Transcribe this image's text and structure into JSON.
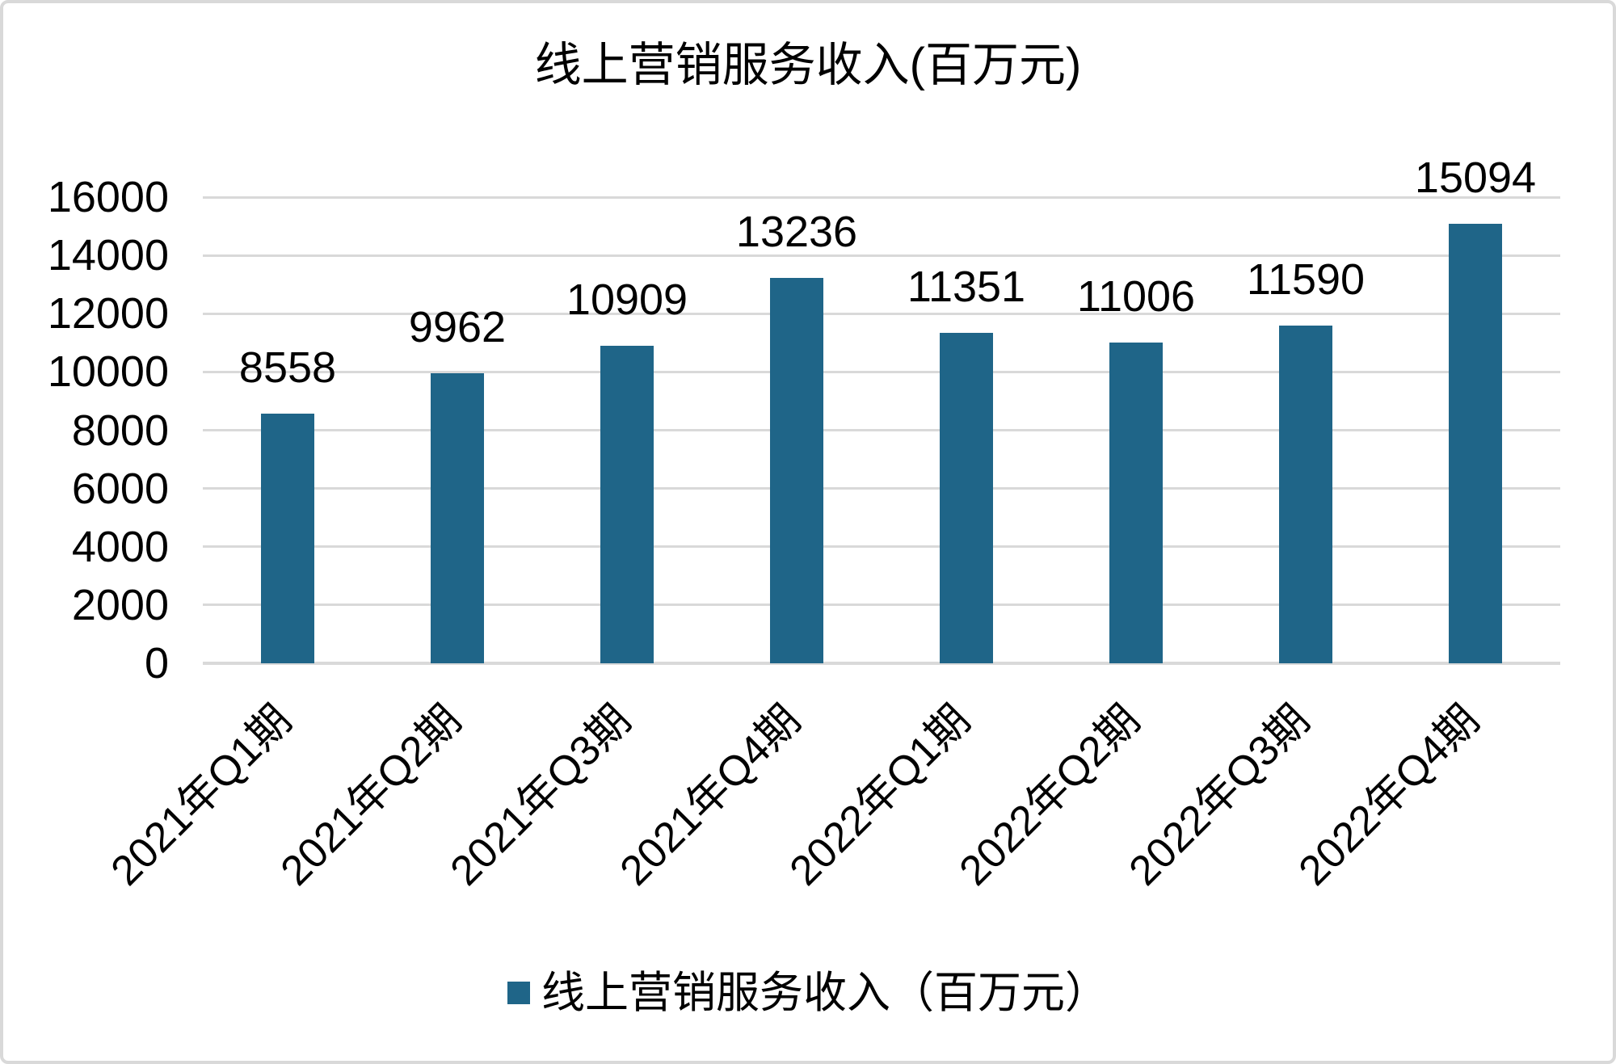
{
  "chart_data": {
    "type": "bar",
    "title": "线上营销服务收入(百万元)",
    "categories": [
      "2021年Q1期",
      "2021年Q2期",
      "2021年Q3期",
      "2021年Q4期",
      "2022年Q1期",
      "2022年Q2期",
      "2022年Q3期",
      "2022年Q4期"
    ],
    "values": [
      8558,
      9962,
      10909,
      13236,
      11351,
      11006,
      11590,
      15094
    ],
    "series_name": "线上营销服务收入（百万元）",
    "legend": {
      "label": "线上营销服务收入（百万元）",
      "position": "bottom"
    },
    "xlabel": "",
    "ylabel": "",
    "ylim": [
      0,
      16000
    ],
    "ytick_step": 2000,
    "yticks": [
      0,
      2000,
      4000,
      6000,
      8000,
      10000,
      12000,
      14000,
      16000
    ],
    "grid": true,
    "x_label_rotation_deg": 45,
    "data_labels_shown": true,
    "colors": {
      "bar": "#1F6588",
      "gridline": "#D9D9D9",
      "text": "#000000",
      "background": "#FFFFFF",
      "frame_border": "#D9D9D9"
    }
  }
}
